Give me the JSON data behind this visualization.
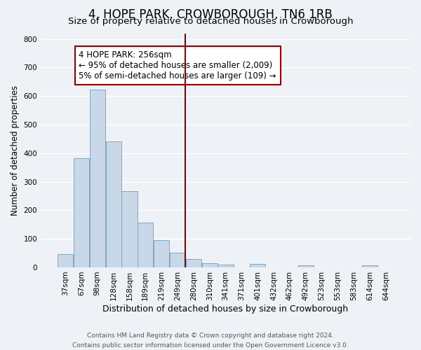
{
  "title": "4, HOPE PARK, CROWBOROUGH, TN6 1RB",
  "subtitle": "Size of property relative to detached houses in Crowborough",
  "xlabel": "Distribution of detached houses by size in Crowborough",
  "ylabel": "Number of detached properties",
  "bin_labels": [
    "37sqm",
    "67sqm",
    "98sqm",
    "128sqm",
    "158sqm",
    "189sqm",
    "219sqm",
    "249sqm",
    "280sqm",
    "310sqm",
    "341sqm",
    "371sqm",
    "401sqm",
    "432sqm",
    "462sqm",
    "492sqm",
    "523sqm",
    "553sqm",
    "583sqm",
    "614sqm",
    "644sqm"
  ],
  "bar_heights": [
    47,
    383,
    622,
    440,
    267,
    158,
    95,
    52,
    30,
    15,
    10,
    0,
    12,
    0,
    0,
    7,
    0,
    0,
    0,
    8,
    0
  ],
  "bar_color": "#c8d8e8",
  "bar_edge_color": "#7aaac8",
  "bar_width": 0.97,
  "vline_x": 7.5,
  "vline_color": "#8b0000",
  "annotation_box_text": "4 HOPE PARK: 256sqm\n← 95% of detached houses are smaller (2,009)\n5% of semi-detached houses are larger (109) →",
  "ylim": [
    0,
    820
  ],
  "yticks": [
    0,
    100,
    200,
    300,
    400,
    500,
    600,
    700,
    800
  ],
  "background_color": "#eef2f7",
  "grid_color": "#ffffff",
  "footnote": "Contains HM Land Registry data © Crown copyright and database right 2024.\nContains public sector information licensed under the Open Government Licence v3.0.",
  "title_fontsize": 12,
  "subtitle_fontsize": 9.5,
  "xlabel_fontsize": 9,
  "ylabel_fontsize": 8.5,
  "tick_fontsize": 7.5,
  "annotation_fontsize": 8.5,
  "footnote_fontsize": 6.5
}
